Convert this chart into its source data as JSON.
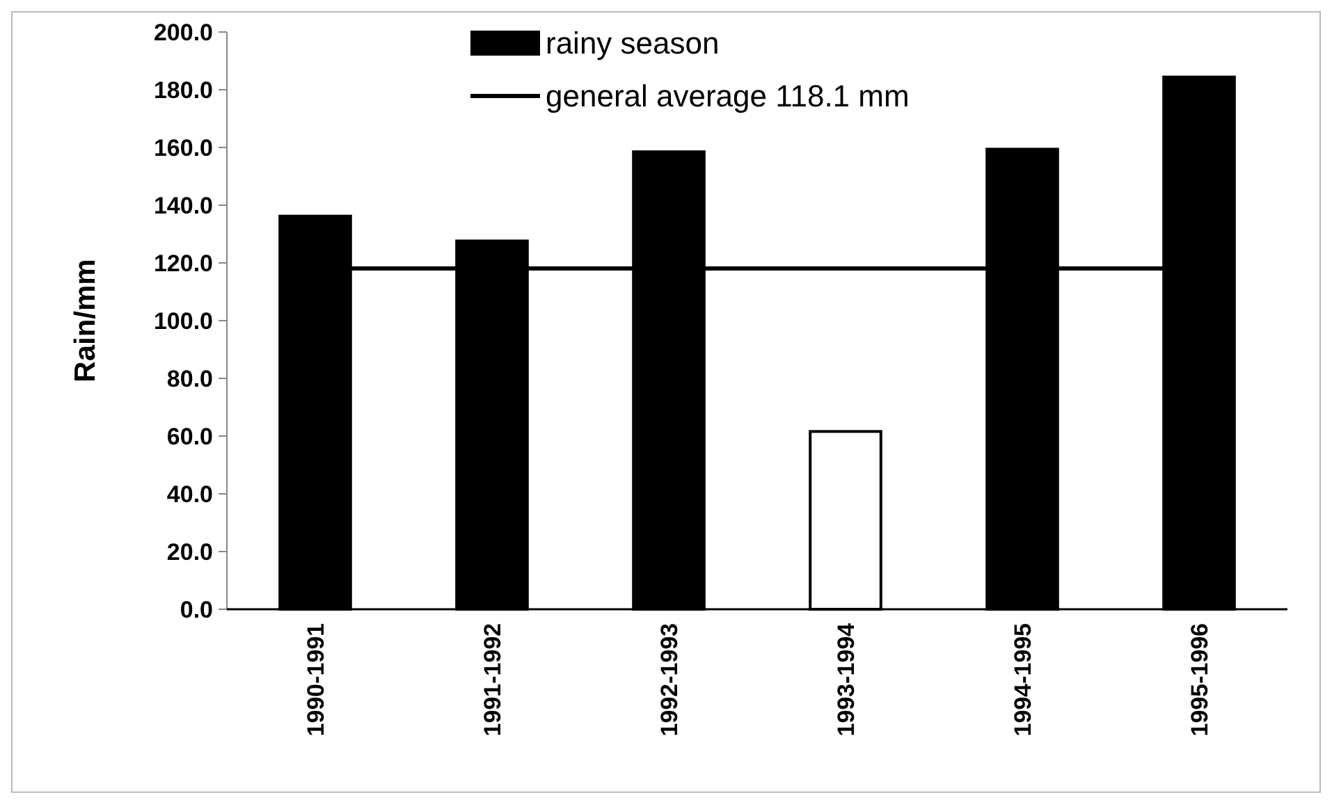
{
  "chart_data": {
    "type": "bar",
    "ylabel": "Rain/mm",
    "categories": [
      "1990-1991",
      "1991-1992",
      "1992-1993",
      "1993-1994",
      "1994-1995",
      "1995-1996"
    ],
    "series": [
      {
        "name": "rainy season",
        "color": "#000000",
        "colors": [
          "#000000",
          "#000000",
          "#000000",
          "#ffffff",
          "#000000",
          "#000000"
        ],
        "values": [
          136.2,
          127.6,
          158.5,
          61.6,
          159.4,
          184.4
        ]
      }
    ],
    "ref_lines": [
      {
        "axis": "y",
        "value": 118.1,
        "label": "general average 118.1 mm",
        "color": "#000000",
        "line_style": "solid"
      }
    ],
    "ylim": [
      0,
      200
    ],
    "yticks": [
      {
        "value": 0,
        "label": "0.0"
      },
      {
        "value": 20,
        "label": "20.0"
      },
      {
        "value": 40,
        "label": "40.0"
      },
      {
        "value": 60,
        "label": "60.0"
      },
      {
        "value": 80,
        "label": "80.0"
      },
      {
        "value": 100,
        "label": "100.0"
      },
      {
        "value": 120,
        "label": "120.0"
      },
      {
        "value": 140,
        "label": "140.0"
      },
      {
        "value": 160,
        "label": "160.0"
      },
      {
        "value": 180,
        "label": "180.0"
      },
      {
        "value": 200,
        "label": "200.0"
      }
    ],
    "grid": false,
    "legend": "top"
  }
}
